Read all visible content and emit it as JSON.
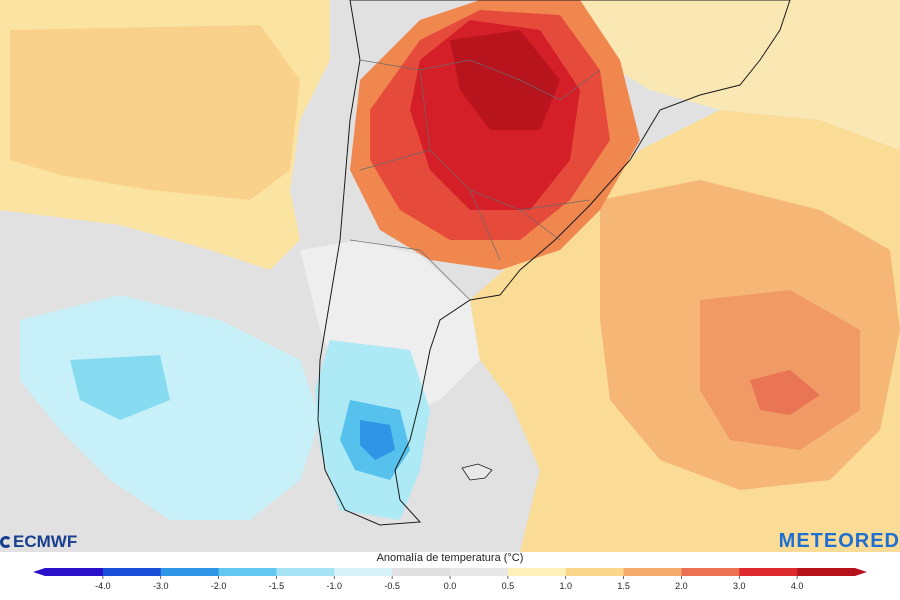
{
  "map": {
    "region": "South America - Southern Cone",
    "field": "temperature anomaly"
  },
  "branding": {
    "left_logo": "ECMWF",
    "right_logo": "METEORED"
  },
  "legend": {
    "title": "Anomalía de temperatura (°C)",
    "ticks": [
      "-4.0",
      "-3.0",
      "-2.0",
      "-1.5",
      "-1.0",
      "-0.5",
      "0.0",
      "0.5",
      "1.0",
      "1.5",
      "2.0",
      "3.0",
      "4.0"
    ],
    "colors": [
      "#2a10c8",
      "#1a4fd8",
      "#2f95e6",
      "#63c8f0",
      "#a6e4f5",
      "#d6f2f8",
      "#e0e0e0",
      "#e8e8e8",
      "#fdf0b8",
      "#fbd78c",
      "#f5ab6e",
      "#ec7052",
      "#dc2a2e",
      "#b5121c"
    ]
  }
}
